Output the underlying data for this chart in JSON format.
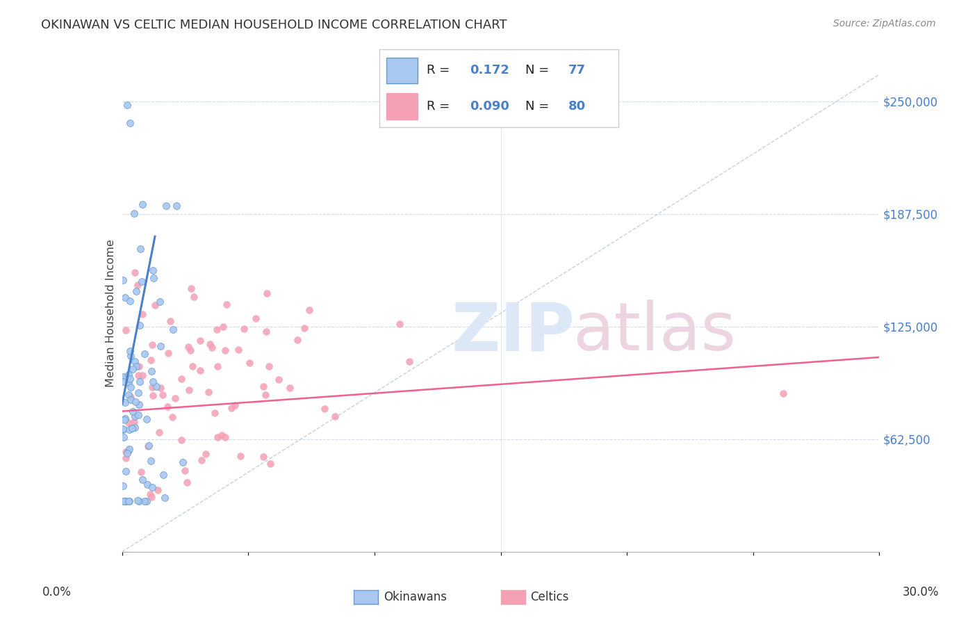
{
  "title": "OKINAWAN VS CELTIC MEDIAN HOUSEHOLD INCOME CORRELATION CHART",
  "source": "Source: ZipAtlas.com",
  "ylabel": "Median Household Income",
  "yticks": [
    62500,
    125000,
    187500,
    250000
  ],
  "ytick_labels": [
    "$62,500",
    "$125,000",
    "$187,500",
    "$250,000"
  ],
  "ymin": 0,
  "ymax": 265000,
  "xmin": 0.0,
  "xmax": 0.3,
  "color_okinawan": "#a8c8f0",
  "color_okinawan_edge": "#6699cc",
  "color_celtic": "#f4a0b5",
  "color_celtic_edge": "#f4a0b5",
  "color_line_okinawan": "#4a7fcb",
  "color_line_celtic": "#f06090",
  "color_diag": "#b0bcd0",
  "watermark_zip_color": "#dce8f5",
  "watermark_atlas_color": "#ecd5e0",
  "background_color": "#ffffff",
  "grid_color": "#d0dce8",
  "R1": "0.172",
  "N1": "77",
  "R2": "0.090",
  "N2": "80"
}
